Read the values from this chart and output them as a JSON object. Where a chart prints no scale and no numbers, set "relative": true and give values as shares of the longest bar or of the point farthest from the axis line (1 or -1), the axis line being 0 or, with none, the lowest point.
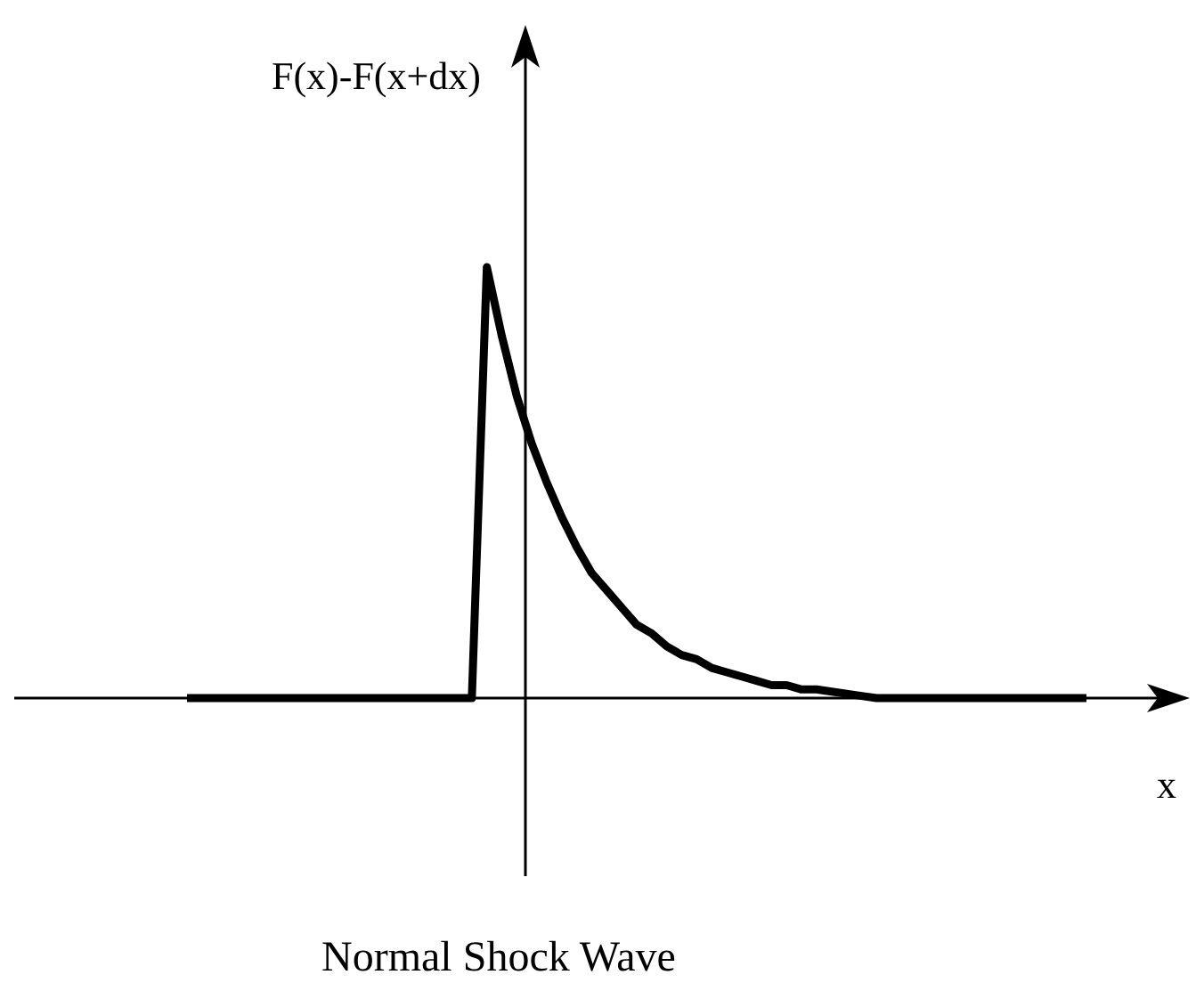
{
  "chart_data": {
    "type": "line",
    "relative": true,
    "xlabel": "x",
    "ylabel": "F(x)-F(x+dx)",
    "annotations": [
      "Normal Shock Wave"
    ],
    "categories": [
      null,
      null,
      null,
      null,
      null,
      null,
      null,
      null,
      null,
      null,
      null,
      null,
      null,
      null,
      null,
      null,
      null,
      null,
      null,
      null,
      null,
      null,
      null,
      null,
      null,
      null,
      null,
      null,
      null,
      null,
      null,
      null,
      null,
      null,
      null,
      null,
      null,
      null,
      null,
      null,
      null,
      null,
      null,
      null,
      null,
      null,
      null,
      null,
      null,
      null,
      null,
      null,
      null,
      null,
      null,
      null,
      null,
      null,
      null,
      null,
      null
    ],
    "series": [
      {
        "color": "#000000",
        "values": [
          0,
          0,
          0,
          0,
          0,
          0,
          0,
          0,
          0,
          0,
          0,
          0,
          0,
          0,
          0,
          0,
          0,
          0,
          0,
          0,
          1,
          0.84,
          0.7,
          0.59,
          0.5,
          0.42,
          0.35,
          0.29,
          0.25,
          0.21,
          0.17,
          0.15,
          0.12,
          0.1,
          0.09,
          0.07,
          0.06,
          0.05,
          0.04,
          0.03,
          0.03,
          0.02,
          0.02,
          0.015,
          0.01,
          0.005,
          0,
          0,
          0,
          0,
          0,
          0,
          0,
          0,
          0,
          0,
          0,
          0,
          0,
          0,
          0
        ]
      }
    ],
    "marker": "none",
    "line_style": "solid"
  }
}
